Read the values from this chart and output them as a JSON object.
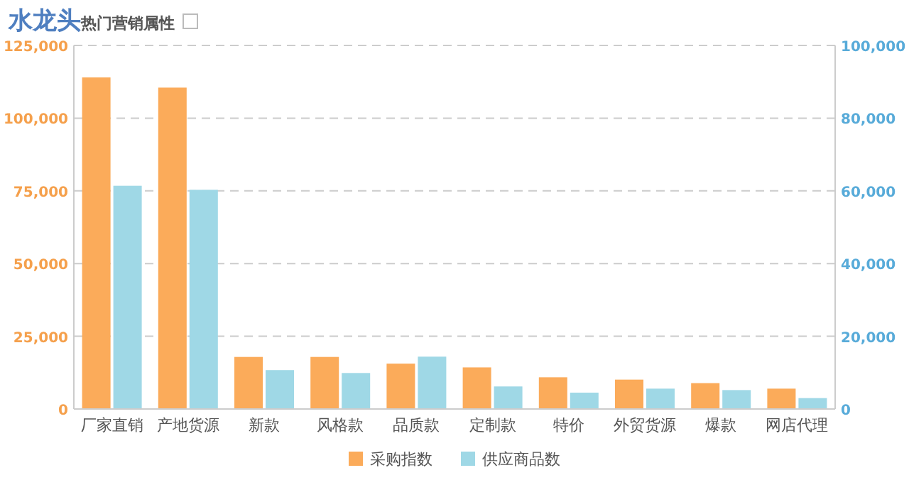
{
  "chart_data": {
    "type": "bar",
    "title": "水龙头",
    "subtitle": "热门营销属性",
    "categories": [
      "厂家直销",
      "产地货源",
      "新款",
      "风格款",
      "品质款",
      "定制款",
      "特价",
      "外贸货源",
      "爆款",
      "网店代理"
    ],
    "series": [
      {
        "name": "采购指数",
        "color": "#fbab5a",
        "values": [
          114000,
          110500,
          17900,
          17900,
          15600,
          14300,
          10900,
          10100,
          8900,
          7000
        ]
      },
      {
        "name": "供应商品数",
        "color": "#9fd8e6",
        "axis": "y2",
        "values": [
          61400,
          60300,
          10700,
          9900,
          14400,
          6200,
          4500,
          5600,
          5200,
          3000
        ]
      }
    ],
    "ylim": [
      0,
      125000
    ],
    "yticks": [
      0,
      {
        "value": 25000,
        "label": "25,000"
      },
      {
        "value": 50000,
        "label": "50,000"
      },
      {
        "value": 75000,
        "label": "75,000"
      },
      {
        "value": 100000,
        "label": "100,000"
      },
      {
        "value": 125000,
        "label": "125,000"
      }
    ],
    "y2lim": [
      0,
      100000
    ],
    "y2ticks": [
      0,
      {
        "value": 20000,
        "label": "20,000"
      },
      {
        "value": 40000,
        "label": "40,000"
      },
      {
        "value": 60000,
        "label": "60,000"
      },
      {
        "value": 80000,
        "label": "80,000"
      },
      {
        "value": 100000,
        "label": "100,000"
      }
    ],
    "grid": "y",
    "legend": "bottom"
  }
}
